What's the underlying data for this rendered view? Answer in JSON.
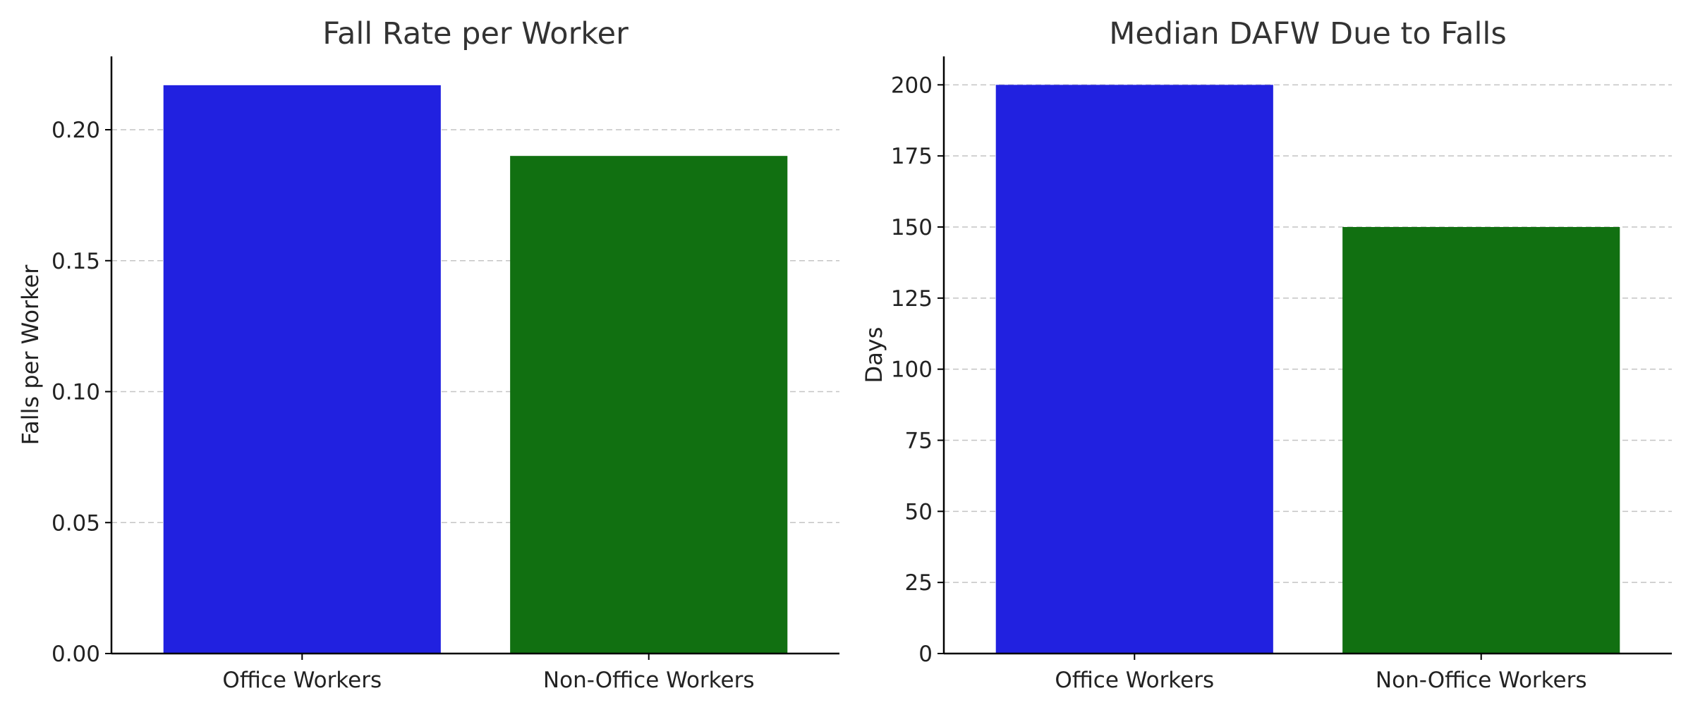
{
  "chart_data": [
    {
      "type": "bar",
      "title": "Fall Rate per Worker",
      "xlabel": "",
      "ylabel": "Falls per Worker",
      "categories": [
        "Office Workers",
        "Non-Office Workers"
      ],
      "values": [
        0.217,
        0.19
      ],
      "colors": [
        "#2121e0",
        "#117011"
      ],
      "ylim": [
        0,
        0.228
      ],
      "yticks": [
        0.0,
        0.05,
        0.1,
        0.15,
        0.2
      ],
      "ytick_labels": [
        "0.00",
        "0.05",
        "0.10",
        "0.15",
        "0.20"
      ],
      "grid": "horizontal-dashed",
      "legend": "none"
    },
    {
      "type": "bar",
      "title": "Median DAFW Due to Falls",
      "xlabel": "",
      "ylabel": "Days",
      "categories": [
        "Office Workers",
        "Non-Office Workers"
      ],
      "values": [
        200,
        150
      ],
      "colors": [
        "#2121e0",
        "#117011"
      ],
      "ylim": [
        0,
        210
      ],
      "yticks": [
        0,
        25,
        50,
        75,
        100,
        125,
        150,
        175,
        200
      ],
      "ytick_labels": [
        "0",
        "25",
        "50",
        "75",
        "100",
        "125",
        "150",
        "175",
        "200"
      ],
      "grid": "horizontal-dashed",
      "legend": "none"
    }
  ]
}
